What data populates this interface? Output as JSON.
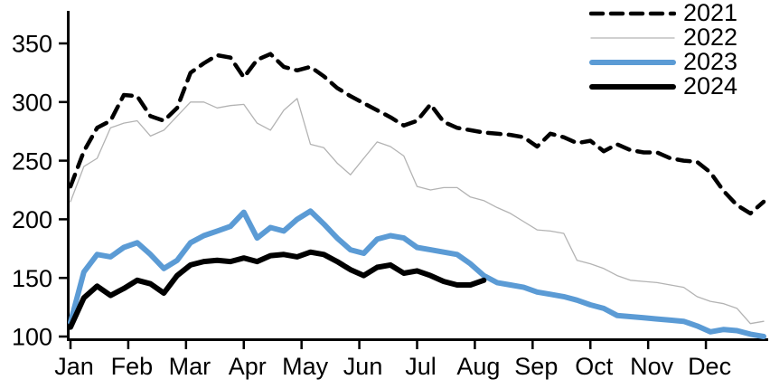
{
  "chart_data": {
    "type": "line",
    "title": "",
    "x_axis": {
      "labels": [
        "Jan",
        "Feb",
        "Mar",
        "Apr",
        "May",
        "Jun",
        "Jul",
        "Aug",
        "Sep",
        "Oct",
        "Nov",
        "Dec"
      ],
      "points_per_year": 52
    },
    "y_axis": {
      "ticks": [
        100,
        150,
        200,
        250,
        300,
        350
      ],
      "range": [
        100,
        350
      ]
    },
    "grid": "off",
    "legend_position": "top-right",
    "series": [
      {
        "name": "2021",
        "color": "#000000",
        "style": "dashed",
        "width": 4.5,
        "values": [
          228,
          258,
          278,
          284,
          306,
          305,
          288,
          284,
          295,
          325,
          333,
          340,
          338,
          321,
          336,
          341,
          330,
          327,
          330,
          322,
          312,
          305,
          299,
          293,
          287,
          280,
          284,
          298,
          283,
          278,
          276,
          274,
          273,
          272,
          270,
          262,
          273,
          270,
          265,
          267,
          258,
          264,
          259,
          257,
          257,
          252,
          250,
          249,
          240,
          224,
          212,
          205,
          215
        ]
      },
      {
        "name": "2022",
        "color": "#b3b3b3",
        "style": "solid",
        "width": 1.3,
        "values": [
          215,
          245,
          252,
          278,
          282,
          284,
          271,
          276,
          288,
          300,
          300,
          295,
          297,
          298,
          282,
          276,
          293,
          303,
          264,
          261,
          248,
          238,
          252,
          266,
          262,
          254,
          228,
          225,
          227,
          227,
          219,
          216,
          210,
          205,
          198,
          191,
          190,
          188,
          165,
          162,
          158,
          152,
          148,
          147,
          146,
          144,
          142,
          134,
          130,
          128,
          124,
          111,
          113
        ]
      },
      {
        "name": "2023",
        "color": "#5b9bd5",
        "style": "solid",
        "width": 6,
        "values": [
          112,
          155,
          170,
          168,
          176,
          180,
          170,
          158,
          165,
          180,
          186,
          190,
          194,
          206,
          184,
          193,
          190,
          200,
          207,
          196,
          184,
          174,
          171,
          183,
          186,
          184,
          176,
          174,
          172,
          170,
          162,
          152,
          146,
          144,
          142,
          138,
          136,
          134,
          131,
          127,
          124,
          118,
          117,
          116,
          115,
          114,
          113,
          109,
          104,
          106,
          105,
          102,
          100
        ]
      },
      {
        "name": "2024",
        "color": "#000000",
        "style": "solid",
        "width": 6,
        "values": [
          108,
          133,
          143,
          135,
          141,
          148,
          145,
          137,
          152,
          161,
          164,
          165,
          164,
          167,
          164,
          169,
          170,
          168,
          172,
          170,
          164,
          157,
          152,
          159,
          161,
          154,
          156,
          152,
          147,
          144,
          144,
          148
        ]
      }
    ]
  }
}
